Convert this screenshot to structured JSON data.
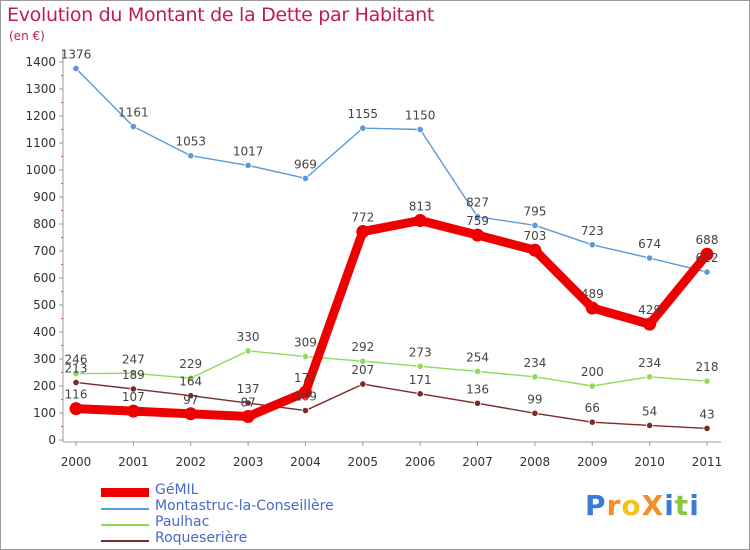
{
  "title": "Evolution du Montant de la Dette par Habitant",
  "unit_label": "(en €)",
  "brand": {
    "text": "ProXiti",
    "letters": [
      "P",
      "r",
      "o",
      "X",
      "i",
      "t",
      "i"
    ],
    "colors": [
      "#3b7ad6",
      "#f0902a",
      "#f5c21d",
      "#f0902a",
      "#3b7ad6",
      "#8cc63f",
      "#3b7ad6"
    ]
  },
  "chart_data": {
    "type": "line",
    "title": "Evolution du Montant de la Dette par Habitant",
    "ylabel": "(en €)",
    "xlabel": "",
    "x": [
      "2000",
      "2001",
      "2002",
      "2003",
      "2004",
      "2005",
      "2006",
      "2007",
      "2008",
      "2009",
      "2010",
      "2011"
    ],
    "ylim": [
      0,
      1400
    ],
    "yticks": [
      0,
      100,
      200,
      300,
      400,
      500,
      600,
      700,
      800,
      900,
      1000,
      1100,
      1200,
      1300,
      1400
    ],
    "grid": false,
    "legend_position": "bottom-left",
    "series": [
      {
        "name": "GéMIL",
        "color": "#ee0000",
        "values": [
          116,
          107,
          97,
          87,
          177,
          772,
          813,
          759,
          703,
          489,
          429,
          688
        ],
        "labels": [
          "116",
          "107",
          "97",
          "87",
          "177",
          "772",
          "813",
          "759",
          "703",
          "489",
          "429",
          "688"
        ]
      },
      {
        "name": "Montastruc-la-Conseillère",
        "color": "#5a9ad6",
        "values": [
          1376,
          1161,
          1053,
          1017,
          969,
          1155,
          1150,
          827,
          795,
          723,
          674,
          622
        ],
        "labels": [
          "1376",
          "1161",
          "1053",
          "1017",
          "969",
          "1155",
          "1150",
          "827",
          "795",
          "723",
          "674",
          "622"
        ]
      },
      {
        "name": "Paulhac",
        "color": "#8edb5a",
        "values": [
          246,
          247,
          229,
          330,
          309,
          292,
          273,
          254,
          234,
          200,
          234,
          218
        ],
        "labels": [
          "246",
          "247",
          "229",
          "330",
          "309",
          "292",
          "273",
          "254",
          "234",
          "200",
          "234",
          "218"
        ]
      },
      {
        "name": "Roqueserière",
        "color": "#7b2a2a",
        "values": [
          213,
          189,
          164,
          137,
          109,
          207,
          171,
          136,
          99,
          66,
          54,
          43
        ],
        "labels": [
          "213",
          "189",
          "164",
          "137",
          "109",
          "207",
          "171",
          "136",
          "99",
          "66",
          "54",
          "43"
        ]
      }
    ]
  }
}
